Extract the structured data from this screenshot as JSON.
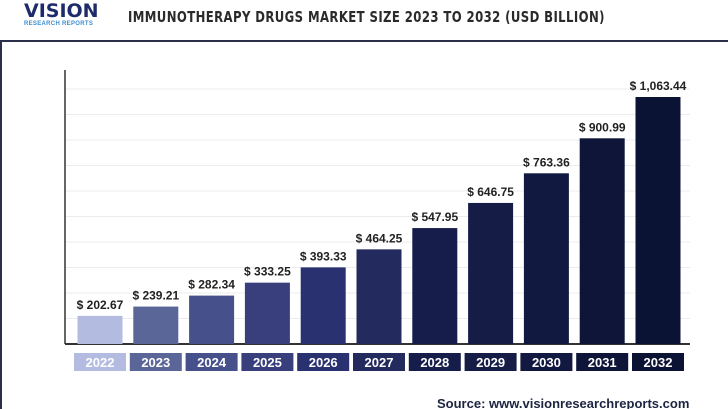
{
  "logo": {
    "main": "VISION",
    "sub": "RESEARCH REPORTS"
  },
  "source": "Source: www.visionresearchreports.com",
  "chart_data": {
    "type": "bar",
    "title": "IMMUNOTHERAPY DRUGS MARKET SIZE 2023 TO 2032 (USD BILLION)",
    "categories": [
      "2022",
      "2023",
      "2024",
      "2025",
      "2026",
      "2027",
      "2028",
      "2029",
      "2030",
      "2031",
      "2032"
    ],
    "values": [
      202.67,
      239.21,
      282.34,
      333.25,
      393.33,
      464.25,
      547.95,
      646.75,
      763.36,
      900.99,
      1063.44
    ],
    "data_labels": [
      "$ 202.67",
      "$ 239.21",
      "$ 282.34",
      "$ 333.25",
      "$ 393.33",
      "$ 464.25",
      "$ 547.95",
      "$ 646.75",
      "$ 763.36",
      "$ 900.99",
      "$ 1,063.44"
    ],
    "colors": [
      "#b3bbe0",
      "#5a6598",
      "#46508a",
      "#383f7c",
      "#2a3170",
      "#232b5e",
      "#161d4a",
      "#151c45",
      "#121940",
      "#0e1538",
      "#0b1335"
    ],
    "ylim": [
      92,
      1063.44
    ],
    "xlabel": "",
    "ylabel": "",
    "grid": true,
    "legend": "none"
  }
}
